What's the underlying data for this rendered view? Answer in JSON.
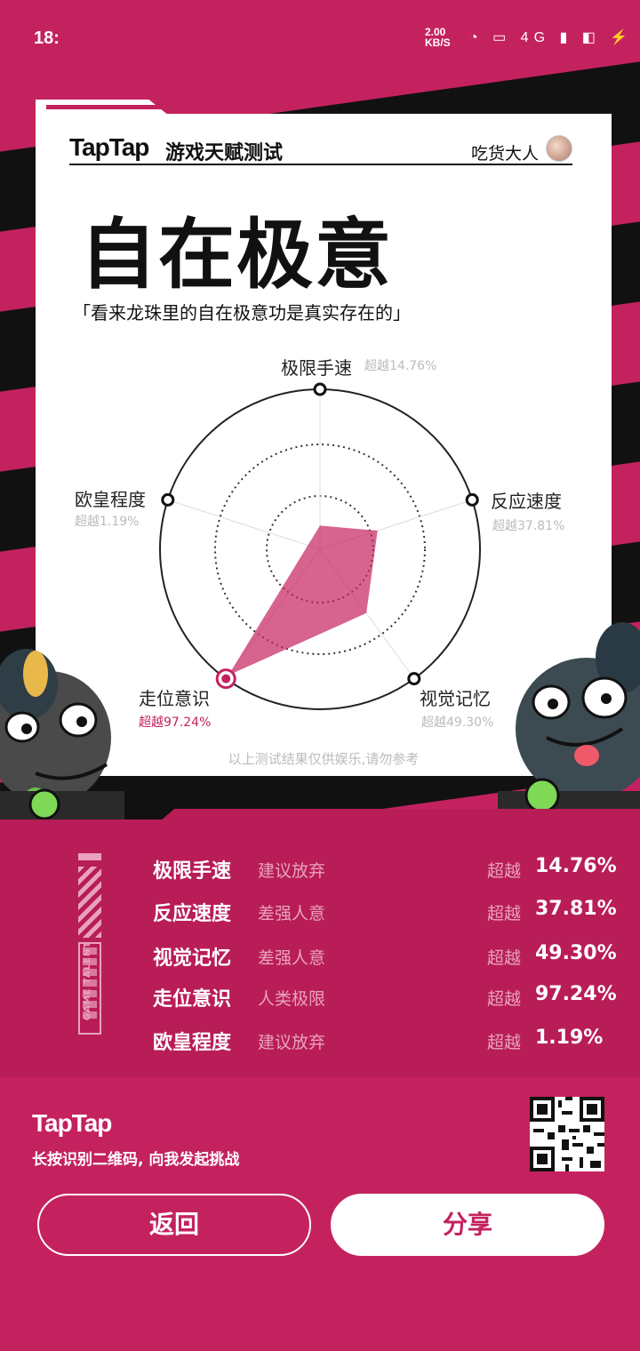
{
  "status_bar": {
    "time": "18:",
    "net_speed": "2.00",
    "net_unit": "KB/S",
    "icons": "◔ ▭ 4G ▮ ◧ ⚡"
  },
  "header": {
    "brand": "TapTap",
    "subtitle": "游戏天赋测试",
    "user_name": "吃货大人"
  },
  "result": {
    "title": "自在极意",
    "quote": "「看来龙珠里的自在极意功是真实存在的」"
  },
  "radar": {
    "dimensions": [
      {
        "label": "极限手速",
        "percent_text": "超越14.76%",
        "value": 14.76
      },
      {
        "label": "反应速度",
        "percent_text": "超越37.81%",
        "value": 37.81
      },
      {
        "label": "视觉记忆",
        "percent_text": "超越49.30%",
        "value": 49.3
      },
      {
        "label": "走位意识",
        "percent_text": "超越97.24%",
        "value": 97.24
      },
      {
        "label": "欧皇程度",
        "percent_text": "超越1.19%",
        "value": 1.19
      }
    ],
    "disclaimer": "以上测试结果仅供娱乐,请勿参考",
    "fill_color": "#c4225f",
    "highlight_index": 3
  },
  "summary": {
    "compare_label": "超越",
    "rows": [
      {
        "name": "极限手速",
        "rating": "建议放弃",
        "value": "14.76%"
      },
      {
        "name": "反应速度",
        "rating": "差强人意",
        "value": "37.81%"
      },
      {
        "name": "视觉记忆",
        "rating": "差强人意",
        "value": "49.30%"
      },
      {
        "name": "走位意识",
        "rating": "人类极限",
        "value": "97.24%"
      },
      {
        "name": "欧皇程度",
        "rating": "建议放弃",
        "value": "1.19%"
      }
    ],
    "side_label": "GAME TALENT"
  },
  "footer": {
    "brand": "TapTap",
    "cta": "长按识别二维码, 向我发起挑战",
    "qr_icon": "qr-code-icon"
  },
  "actions": {
    "back_label": "返回",
    "share_label": "分享"
  },
  "colors": {
    "brand": "#c4225f",
    "dark": "#111111",
    "muted": "#e9a2bd"
  }
}
